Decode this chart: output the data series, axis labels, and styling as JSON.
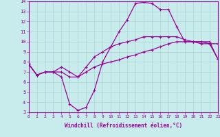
{
  "xlabel": "Windchill (Refroidissement éolien,°C)",
  "xlim": [
    0,
    23
  ],
  "ylim": [
    3,
    14
  ],
  "xticks": [
    0,
    1,
    2,
    3,
    4,
    5,
    6,
    7,
    8,
    9,
    10,
    11,
    12,
    13,
    14,
    15,
    16,
    17,
    18,
    19,
    20,
    21,
    22,
    23
  ],
  "yticks": [
    3,
    4,
    5,
    6,
    7,
    8,
    9,
    10,
    11,
    12,
    13,
    14
  ],
  "bg_color": "#c8ecec",
  "line_color": "#990099",
  "grid_color": "#b0d8d8",
  "line1_x": [
    0,
    1,
    2,
    3,
    4,
    5,
    6,
    7,
    8,
    9,
    10,
    11,
    12,
    13,
    14,
    15,
    16,
    17,
    18,
    19,
    20,
    21,
    22,
    23
  ],
  "line1_y": [
    7.8,
    6.7,
    7.0,
    7.0,
    7.5,
    7.0,
    6.5,
    7.5,
    8.5,
    9.0,
    9.5,
    9.8,
    10.0,
    10.2,
    10.5,
    10.5,
    10.5,
    10.5,
    10.5,
    10.2,
    10.0,
    9.8,
    9.8,
    9.8
  ],
  "line2_x": [
    0,
    1,
    2,
    3,
    4,
    5,
    6,
    7,
    8,
    9,
    10,
    11,
    12,
    13,
    14,
    15,
    16,
    17,
    18,
    19,
    20,
    21,
    22,
    23
  ],
  "line2_y": [
    7.8,
    6.7,
    7.0,
    7.0,
    6.5,
    3.8,
    3.2,
    3.5,
    5.2,
    8.0,
    9.5,
    11.0,
    12.2,
    13.8,
    13.9,
    13.8,
    13.2,
    13.2,
    11.5,
    10.0,
    10.0,
    10.0,
    9.8,
    8.3
  ],
  "line3_x": [
    0,
    1,
    2,
    3,
    4,
    5,
    6,
    7,
    8,
    9,
    10,
    11,
    12,
    13,
    14,
    15,
    16,
    17,
    18,
    19,
    20,
    21,
    22,
    23
  ],
  "line3_y": [
    7.8,
    6.7,
    7.0,
    7.0,
    7.0,
    6.5,
    6.5,
    7.0,
    7.5,
    7.8,
    8.0,
    8.2,
    8.5,
    8.7,
    9.0,
    9.2,
    9.5,
    9.8,
    10.0,
    10.0,
    10.0,
    10.0,
    10.0,
    8.3
  ]
}
